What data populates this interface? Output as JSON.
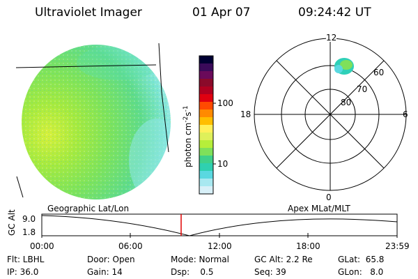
{
  "header": {
    "title": "Ultraviolet Imager",
    "date": "01 Apr 07",
    "time": "09:24:42 UT"
  },
  "colorbar": {
    "label_main": "photon cm",
    "label_exp1": "-2",
    "label_mid": "s",
    "label_exp2": "-1",
    "tick_100": "100",
    "tick_10": "10",
    "colors": [
      "#000033",
      "#3a0a5a",
      "#6a0a5a",
      "#8a0a2a",
      "#b00020",
      "#e00010",
      "#ff4a00",
      "#ff8a00",
      "#ffbe00",
      "#fff05a",
      "#dff05a",
      "#b6ee3a",
      "#7fe05a",
      "#3fd08a",
      "#2fd0b0",
      "#5ad8e0",
      "#a8e8f0",
      "#d8f0f8"
    ]
  },
  "polar_plot": {
    "mlt_12": "12",
    "mlt_18": "18",
    "mlt_6": "6",
    "mlt_0": "0",
    "lat_60": "60",
    "lat_70": "70",
    "lat_80": "80"
  },
  "altitude_strip": {
    "axis_label": "GC Alt",
    "y_top": "9.0",
    "y_bottom": "1.8",
    "left_caption": "Geographic Lat/Lon",
    "right_caption": "Apex MLat/MLT",
    "time_ticks": [
      "00:00",
      "06:00",
      "12:00",
      "18:00",
      "23:59"
    ],
    "current_time_marker_color": "#e00000"
  },
  "footer": {
    "filter": "Flt: LBHL",
    "ip": "IP: 36.0",
    "door": "Door: Open",
    "gain": "Gain: 14",
    "mode": "Mode: Normal",
    "dsp": "Dsp:    0.5",
    "gc_alt": "GC Alt: 2.2 Re",
    "seq": "Seq: 39",
    "glat": "GLat:  65.8",
    "glon": "GLon:   8.0"
  }
}
